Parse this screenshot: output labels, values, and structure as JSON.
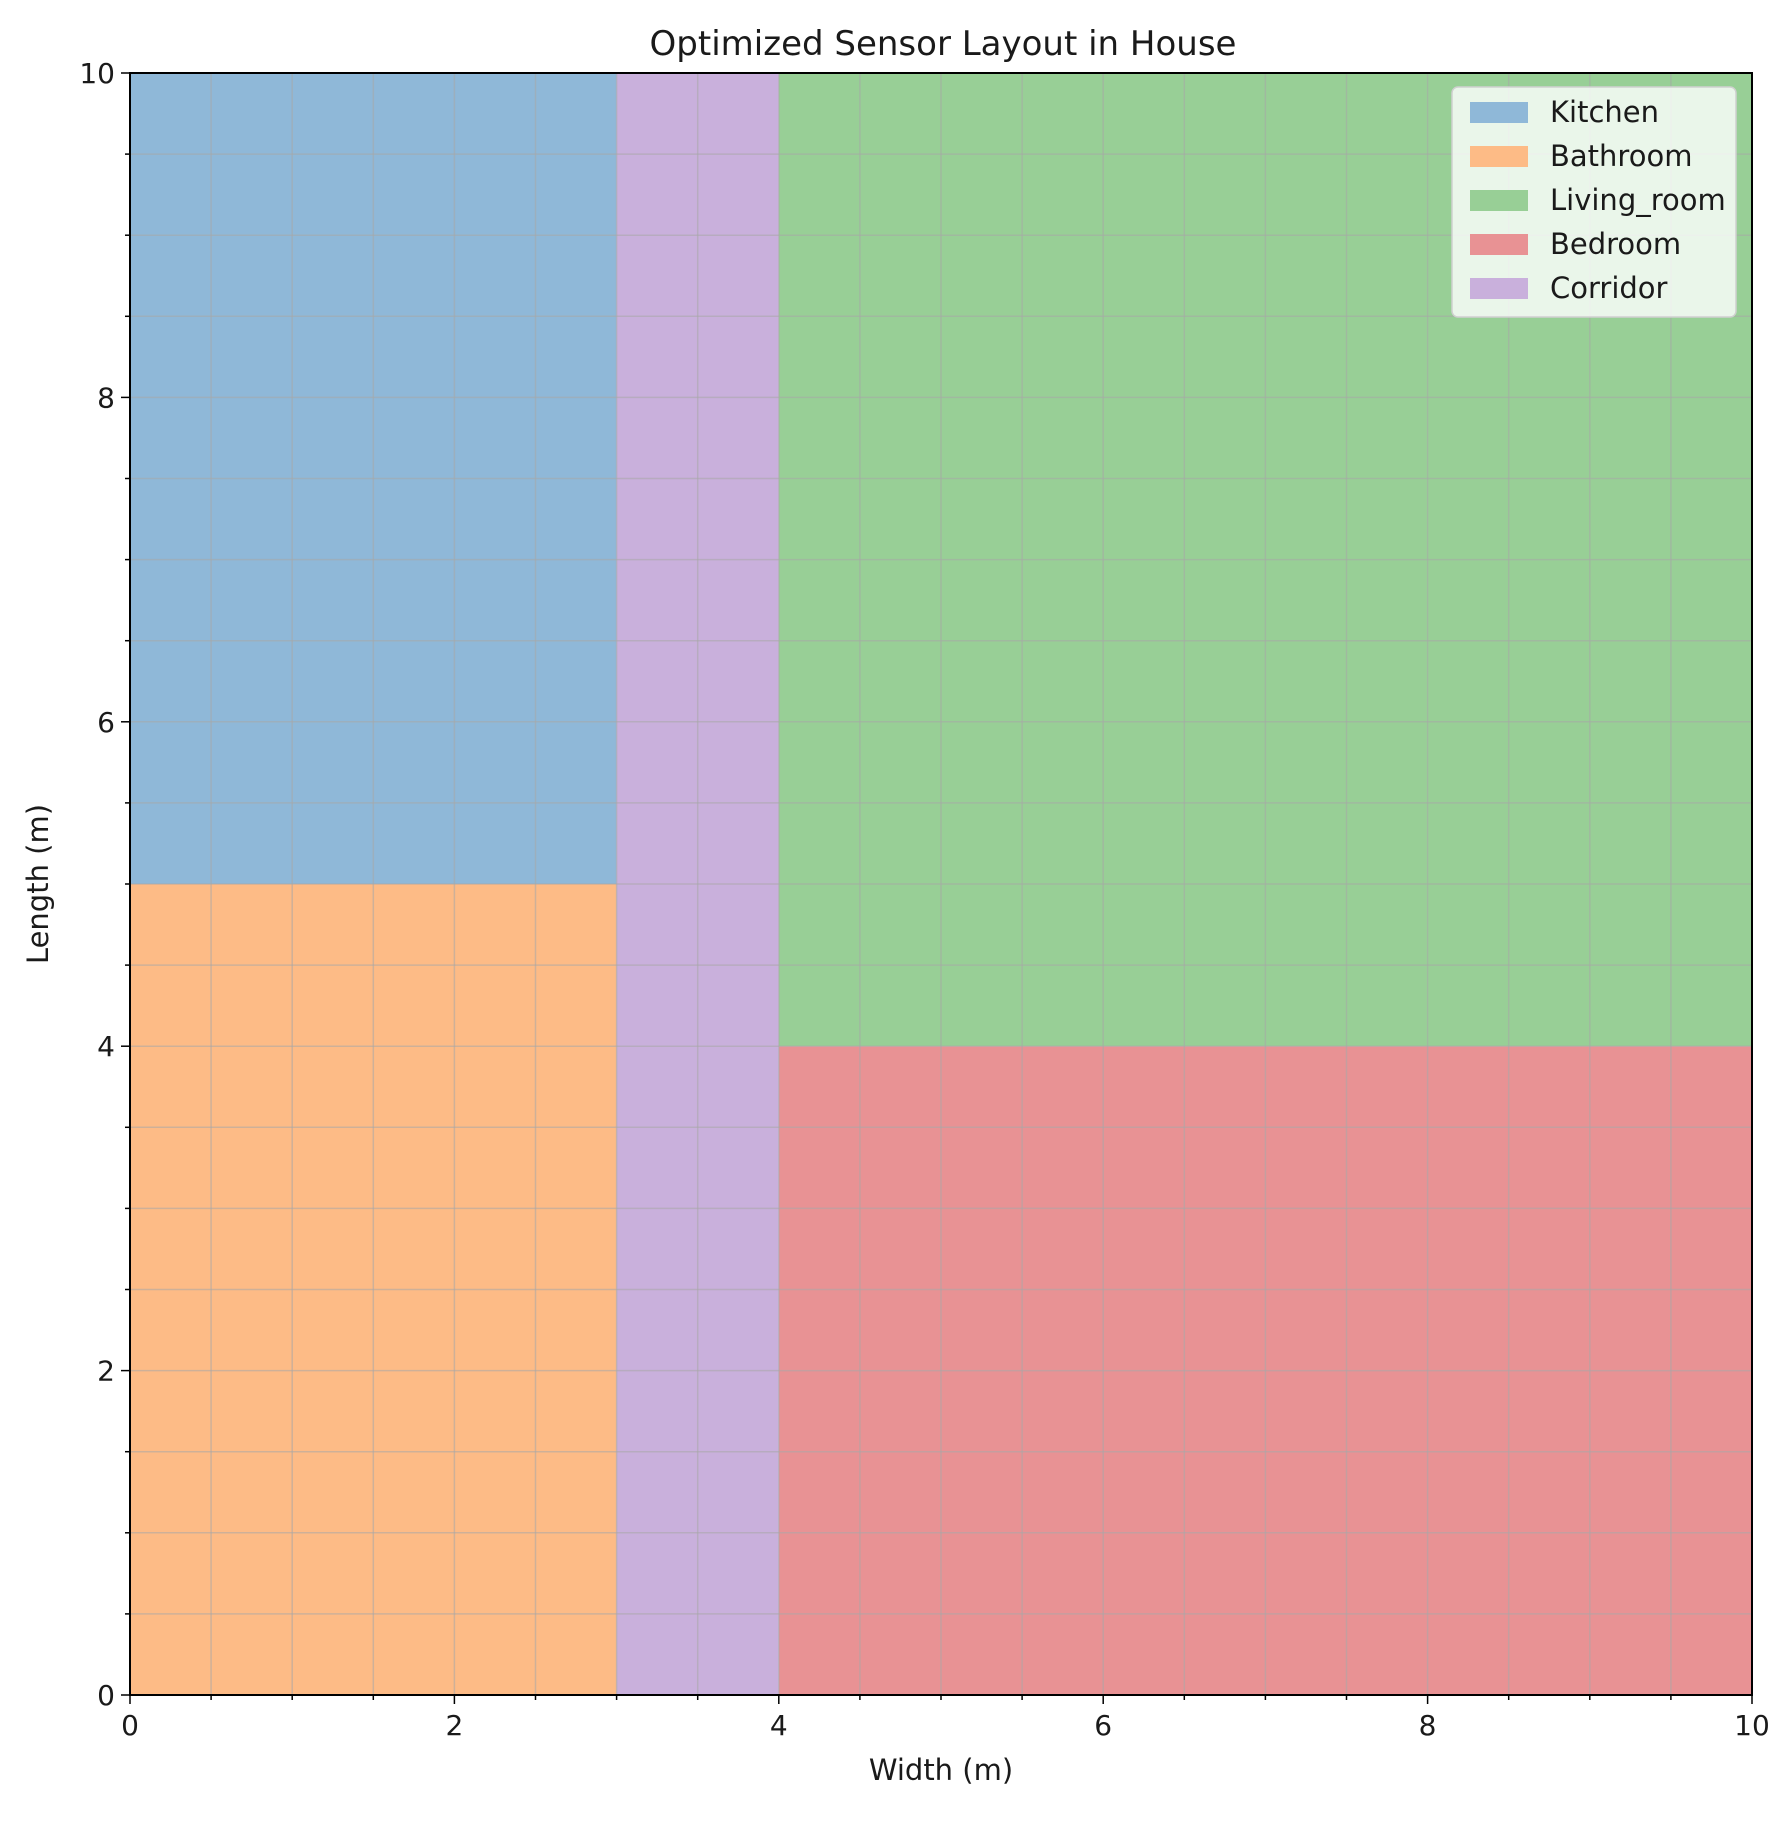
{
  "chart_data": {
    "type": "heatmap",
    "title": "Optimized Sensor Layout in House",
    "xlabel": "Width (m)",
    "ylabel": "Length (m)",
    "xlim": [
      0,
      10
    ],
    "ylim": [
      0,
      10
    ],
    "xticks": [
      0,
      2,
      4,
      6,
      8,
      10
    ],
    "yticks": [
      0,
      2,
      4,
      6,
      8,
      10
    ],
    "xtick_labels": [
      "0",
      "2",
      "4",
      "6",
      "8",
      "10"
    ],
    "ytick_labels": [
      "0",
      "2",
      "4",
      "6",
      "8",
      "10"
    ],
    "grid": true,
    "grid_step": 0.5,
    "legend_placement": "top-right",
    "rooms": [
      {
        "name": "Kitchen",
        "color": "#8fb8d8",
        "x": [
          0,
          3
        ],
        "y": [
          5,
          10
        ]
      },
      {
        "name": "Bathroom",
        "color": "#fdbb86",
        "x": [
          0,
          3
        ],
        "y": [
          0,
          5
        ]
      },
      {
        "name": "Living_room",
        "color": "#98cf96",
        "x": [
          4,
          10
        ],
        "y": [
          4,
          10
        ]
      },
      {
        "name": "Bedroom",
        "color": "#e89294",
        "x": [
          4,
          10
        ],
        "y": [
          0,
          4
        ]
      },
      {
        "name": "Corridor",
        "color": "#c9b0dc",
        "x": [
          3,
          4
        ],
        "y": [
          0,
          10
        ]
      }
    ]
  }
}
